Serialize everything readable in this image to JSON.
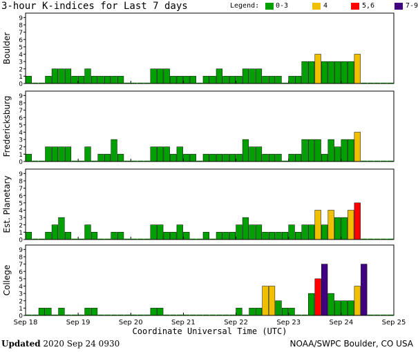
{
  "title": "3-hour K-indices for Last 7 days",
  "legend": {
    "label": "Legend:",
    "entries": [
      {
        "label": "0-3",
        "color": "#00a000"
      },
      {
        "label": "4",
        "color": "#f0c000"
      },
      {
        "label": "5,6",
        "color": "#ff0000"
      },
      {
        "label": "7-9",
        "color": "#400080"
      }
    ]
  },
  "footer": {
    "updated_label": "Updated",
    "updated_value": "2020 Sep 24 0930",
    "credit": "NOAA/SWPC Boulder, CO USA"
  },
  "chart_data": {
    "type": "bar",
    "xlabel": "Coordinate Universal Time (UTC)",
    "x_ticks": [
      "Sep 18",
      "Sep 19",
      "Sep 20",
      "Sep 21",
      "Sep 22",
      "Sep 23",
      "Sep 24",
      "Sep 25"
    ],
    "ylim": [
      0,
      9
    ],
    "y_ticks": [
      "0",
      "1",
      "2",
      "3",
      "4",
      "5",
      "6",
      "7",
      "8",
      "9"
    ],
    "interval_hours": 3,
    "panels": [
      {
        "name": "Boulder",
        "values": [
          1,
          0,
          0,
          1,
          2,
          2,
          2,
          1,
          1,
          2,
          1,
          1,
          1,
          1,
          1,
          0,
          0,
          0,
          0,
          2,
          2,
          2,
          1,
          1,
          1,
          1,
          0,
          1,
          1,
          2,
          1,
          1,
          1,
          2,
          2,
          2,
          1,
          1,
          1,
          0,
          1,
          1,
          3,
          3,
          4,
          3,
          3,
          3,
          3,
          3,
          4,
          0,
          0,
          0,
          0,
          0
        ]
      },
      {
        "name": "Fredericksburg",
        "values": [
          1,
          0,
          0,
          2,
          2,
          2,
          2,
          0,
          0,
          2,
          0,
          1,
          1,
          3,
          1,
          0,
          0,
          0,
          0,
          2,
          2,
          2,
          1,
          2,
          1,
          1,
          0,
          1,
          1,
          1,
          1,
          1,
          1,
          3,
          2,
          2,
          1,
          1,
          1,
          0,
          1,
          1,
          3,
          3,
          3,
          1,
          3,
          2,
          3,
          3,
          4,
          0,
          0,
          0,
          0,
          0
        ]
      },
      {
        "name": "Est. Planetary",
        "values": [
          1,
          0,
          0,
          1,
          2,
          3,
          1,
          0,
          0,
          2,
          1,
          0,
          0,
          1,
          1,
          0,
          0,
          0,
          0,
          2,
          2,
          1,
          1,
          2,
          1,
          0,
          0,
          1,
          0,
          1,
          1,
          1,
          2,
          3,
          2,
          2,
          1,
          1,
          1,
          1,
          2,
          1,
          2,
          2,
          4,
          2,
          4,
          3,
          3,
          4,
          5,
          0,
          0,
          0,
          0,
          0
        ]
      },
      {
        "name": "College",
        "values": [
          0,
          0,
          1,
          1,
          0,
          1,
          0,
          0,
          0,
          1,
          1,
          0,
          0,
          0,
          0,
          0,
          0,
          0,
          0,
          1,
          1,
          0,
          0,
          0,
          0,
          0,
          0,
          0,
          0,
          0,
          0,
          0,
          1,
          0,
          1,
          1,
          4,
          4,
          2,
          1,
          1,
          0,
          0,
          3,
          5,
          7,
          3,
          2,
          2,
          2,
          4,
          7,
          0,
          0,
          0,
          0
        ]
      }
    ],
    "color_bins": [
      {
        "min": 0,
        "max": 3,
        "color": "#00a000"
      },
      {
        "min": 4,
        "max": 4,
        "color": "#f0c000"
      },
      {
        "min": 5,
        "max": 6,
        "color": "#ff0000"
      },
      {
        "min": 7,
        "max": 9,
        "color": "#400080"
      }
    ],
    "grid": false
  }
}
